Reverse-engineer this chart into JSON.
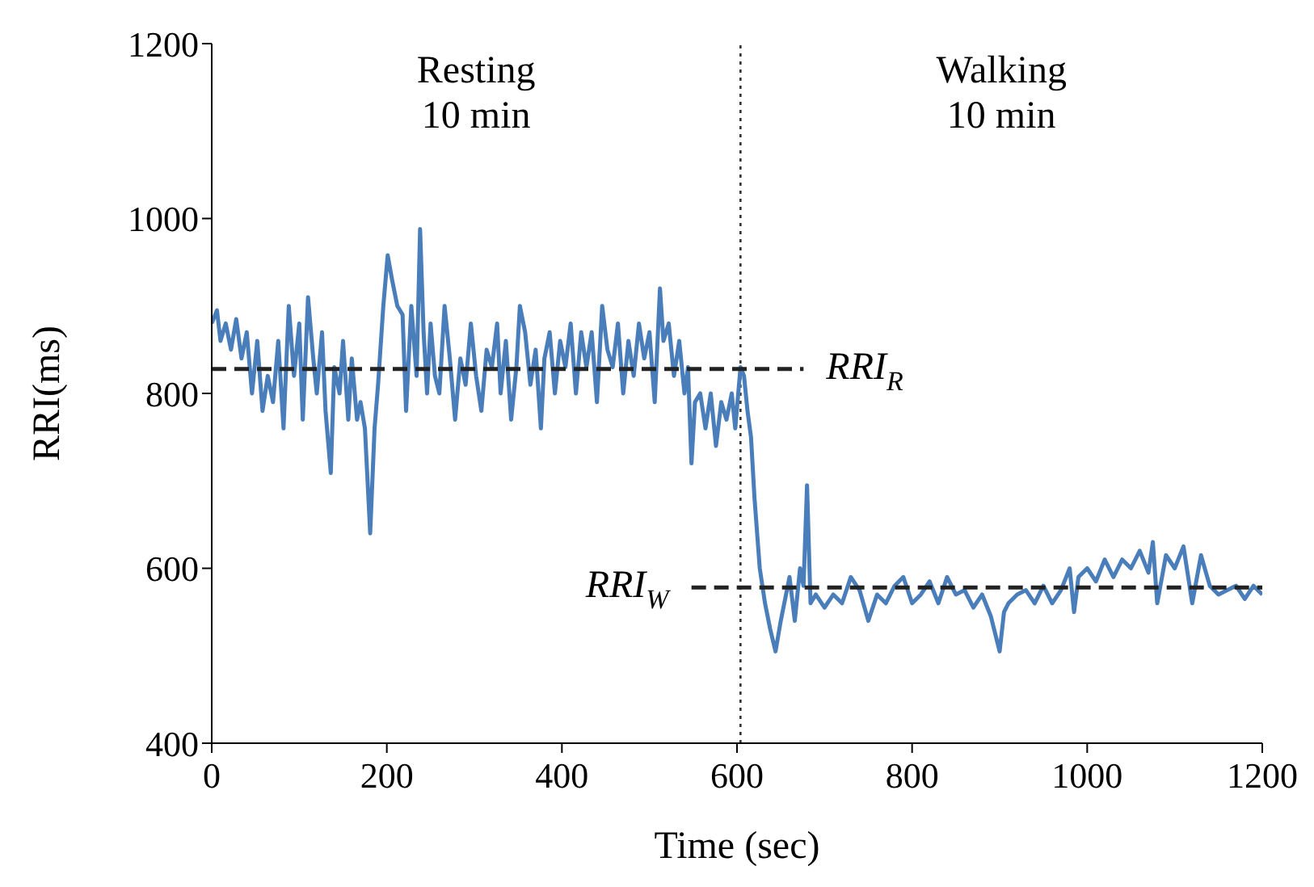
{
  "chart_data": {
    "type": "line",
    "xlabel": "Time (sec)",
    "ylabel": "RRI(ms)",
    "xlim": [
      0,
      1200
    ],
    "ylim": [
      400,
      1200
    ],
    "xticks": [
      0,
      200,
      400,
      600,
      800,
      1000,
      1200
    ],
    "yticks": [
      400,
      600,
      800,
      1000,
      1200
    ],
    "annotations": [
      "Resting\n10 min",
      "Walking\n10 min"
    ],
    "ref_lines": [
      {
        "axis": "x",
        "value": 604,
        "line_style": "dotted",
        "color": "#333333"
      }
    ],
    "series": [
      {
        "color": "#4a7ebb",
        "x": [
          0,
          6,
          10,
          16,
          22,
          28,
          34,
          40,
          46,
          52,
          58,
          64,
          70,
          76,
          82,
          88,
          94,
          100,
          104,
          110,
          116,
          120,
          126,
          130,
          136,
          140,
          146,
          150,
          156,
          160,
          166,
          170,
          175,
          181,
          186,
          190,
          196,
          201,
          206,
          212,
          218,
          222,
          228,
          234,
          238,
          242,
          246,
          250,
          255,
          260,
          266,
          272,
          278,
          284,
          290,
          296,
          302,
          308,
          314,
          320,
          326,
          330,
          336,
          342,
          348,
          352,
          358,
          364,
          370,
          376,
          380,
          386,
          392,
          398,
          404,
          410,
          416,
          422,
          428,
          434,
          440,
          446,
          452,
          458,
          464,
          470,
          476,
          482,
          488,
          494,
          500,
          506,
          512,
          516,
          522,
          528,
          534,
          540,
          544,
          548,
          552,
          558,
          564,
          570,
          576,
          582,
          588,
          594,
          598,
          604,
          608,
          612,
          616,
          620,
          626,
          632,
          638,
          644,
          650,
          656,
          660,
          666,
          672,
          676,
          680,
          684,
          690,
          700,
          710,
          720,
          730,
          740,
          750,
          760,
          770,
          780,
          790,
          800,
          810,
          820,
          830,
          840,
          850,
          860,
          870,
          880,
          890,
          900,
          905,
          910,
          920,
          930,
          940,
          950,
          960,
          970,
          980,
          985,
          990,
          1000,
          1010,
          1020,
          1030,
          1040,
          1050,
          1060,
          1070,
          1075,
          1080,
          1090,
          1100,
          1110,
          1120,
          1130,
          1140,
          1150,
          1160,
          1170,
          1180,
          1190,
          1200
        ],
        "values": [
          880,
          895,
          860,
          880,
          850,
          885,
          840,
          870,
          800,
          860,
          780,
          820,
          790,
          860,
          760,
          900,
          820,
          880,
          770,
          910,
          840,
          800,
          870,
          780,
          709,
          830,
          800,
          860,
          770,
          840,
          770,
          790,
          760,
          640,
          760,
          810,
          900,
          958,
          930,
          900,
          890,
          780,
          900,
          820,
          988,
          870,
          800,
          880,
          820,
          800,
          900,
          840,
          770,
          840,
          810,
          880,
          820,
          780,
          850,
          830,
          880,
          800,
          860,
          770,
          830,
          900,
          870,
          810,
          850,
          760,
          840,
          870,
          800,
          860,
          830,
          880,
          800,
          870,
          830,
          870,
          790,
          900,
          850,
          830,
          880,
          800,
          860,
          820,
          880,
          840,
          870,
          790,
          920,
          860,
          880,
          820,
          860,
          800,
          830,
          720,
          790,
          800,
          760,
          800,
          740,
          790,
          770,
          800,
          760,
          830,
          820,
          780,
          750,
          680,
          600,
          560,
          530,
          505,
          540,
          570,
          590,
          540,
          600,
          580,
          695,
          560,
          570,
          555,
          570,
          560,
          590,
          575,
          540,
          570,
          560,
          580,
          590,
          560,
          570,
          585,
          560,
          590,
          570,
          575,
          555,
          570,
          545,
          505,
          550,
          560,
          570,
          575,
          560,
          580,
          560,
          575,
          600,
          550,
          590,
          600,
          585,
          610,
          590,
          610,
          600,
          620,
          595,
          630,
          560,
          615,
          600,
          625,
          560,
          615,
          580,
          570,
          575,
          580,
          565,
          580,
          570
        ]
      },
      {
        "name": "RRI$_{R}$",
        "color": "#222222",
        "line_style": "dashed",
        "x": [
          0,
          676
        ],
        "values": [
          828,
          828
        ]
      },
      {
        "name": "RRI$_{W}$",
        "color": "#222222",
        "line_style": "dashed",
        "x": [
          548,
          1200
        ],
        "values": [
          578,
          578
        ]
      }
    ]
  }
}
